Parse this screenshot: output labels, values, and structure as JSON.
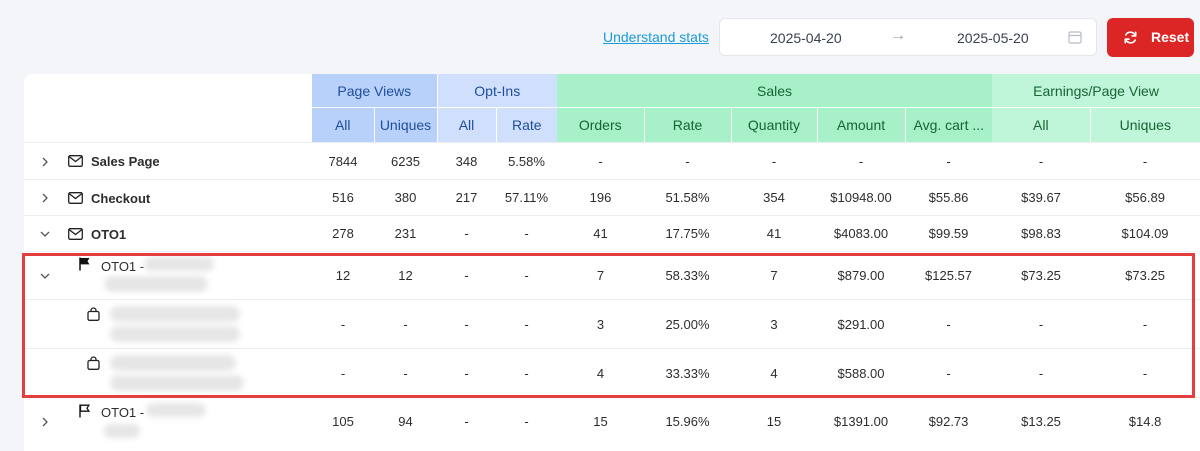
{
  "toolbar": {
    "understand_label": "Understand stats",
    "date_from": "2025-04-20",
    "date_to": "2025-05-20",
    "reset_label": "Reset"
  },
  "table": {
    "groups": [
      "Page Views",
      "Opt-Ins",
      "Sales",
      "Earnings/Page View"
    ],
    "columns": [
      "All",
      "Uniques",
      "All",
      "Rate",
      "Orders",
      "Rate",
      "Quantity",
      "Amount",
      "Avg. cart ...",
      "All",
      "Uniques"
    ],
    "rows": [
      {
        "name": "Sales Page",
        "values": [
          "7844",
          "6235",
          "348",
          "5.58%",
          "-",
          "-",
          "-",
          "-",
          "-",
          "-",
          "-"
        ]
      },
      {
        "name": "Checkout",
        "values": [
          "516",
          "380",
          "217",
          "57.11%",
          "196",
          "51.58%",
          "354",
          "$10948.00",
          "$55.86",
          "$39.67",
          "$56.89"
        ]
      },
      {
        "name": "OTO1",
        "values": [
          "278",
          "231",
          "-",
          "-",
          "41",
          "17.75%",
          "41",
          "$4083.00",
          "$99.59",
          "$98.83",
          "$104.09"
        ]
      },
      {
        "name": "OTO1 -",
        "values": [
          "12",
          "12",
          "-",
          "-",
          "7",
          "58.33%",
          "7",
          "$879.00",
          "$125.57",
          "$73.25",
          "$73.25"
        ]
      },
      {
        "name": "",
        "values": [
          "-",
          "-",
          "-",
          "-",
          "3",
          "25.00%",
          "3",
          "$291.00",
          "-",
          "-",
          "-"
        ]
      },
      {
        "name": "",
        "values": [
          "-",
          "-",
          "-",
          "-",
          "4",
          "33.33%",
          "4",
          "$588.00",
          "-",
          "-",
          "-"
        ]
      },
      {
        "name": "OTO1 -",
        "values": [
          "105",
          "94",
          "-",
          "-",
          "15",
          "15.96%",
          "15",
          "$1391.00",
          "$92.73",
          "$13.25",
          "$14.8"
        ]
      }
    ]
  }
}
